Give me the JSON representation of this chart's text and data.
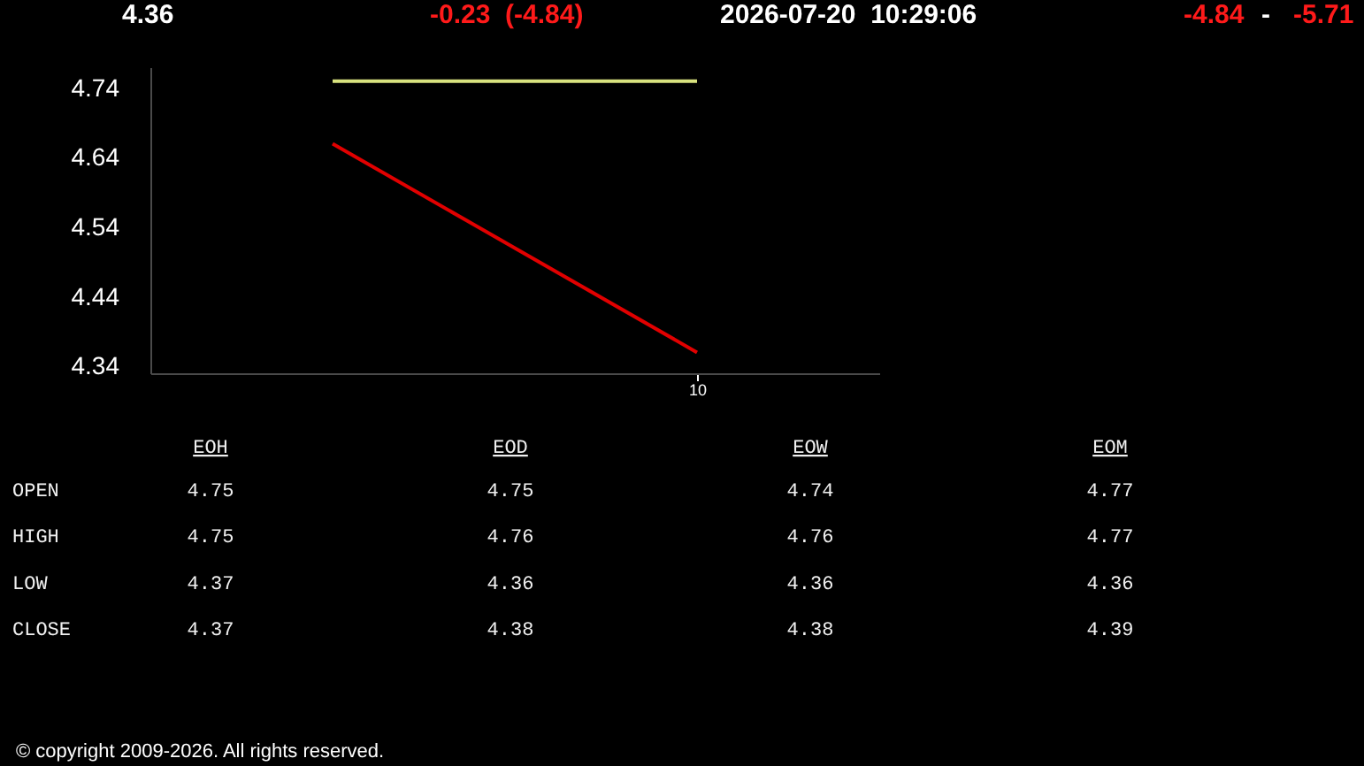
{
  "chart_data": [
    {
      "type": "line",
      "title": "4.36",
      "categories": [
        null,
        "10"
      ],
      "series": [
        {
          "color": "#d9e37f",
          "values": [
            4.75,
            4.75
          ]
        },
        {
          "color": "#e10000",
          "values": [
            4.66,
            4.36
          ]
        }
      ],
      "ylim": [
        4.33,
        4.77
      ],
      "yticks": [
        4.34,
        4.44,
        4.54,
        4.64,
        4.74
      ],
      "annotations": [
        "-0.23  (-4.84)",
        "2026-07-20  10:29:06",
        "-4.84",
        "-",
        "-5.71"
      ]
    },
    {
      "type": "other",
      "categories": [
        "EOH",
        "EOD",
        "EOW",
        "EOM"
      ],
      "series": [
        {
          "name": "OPEN",
          "values": [
            4.75,
            4.75,
            4.74,
            4.77
          ]
        },
        {
          "name": "HIGH",
          "values": [
            4.75,
            4.76,
            4.76,
            4.77
          ]
        },
        {
          "name": "LOW",
          "values": [
            4.37,
            4.36,
            4.36,
            4.36
          ]
        },
        {
          "name": "CLOSE",
          "values": [
            4.37,
            4.38,
            4.38,
            4.39
          ]
        }
      ],
      "data_labels": true,
      "annotations": [
        "© copyright 2009-2026. All rights reserved."
      ]
    }
  ]
}
